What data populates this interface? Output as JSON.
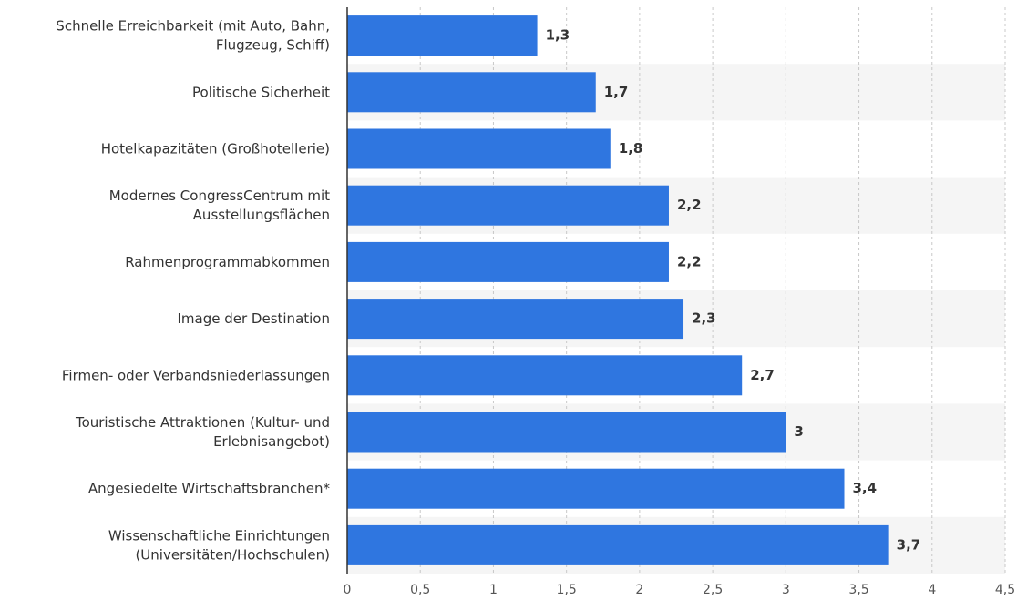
{
  "chart_data": {
    "type": "bar",
    "orientation": "horizontal",
    "categories": [
      [
        "Schnelle Erreichbarkeit (mit Auto, Bahn,",
        "Flugzeug, Schiff)"
      ],
      [
        "Politische Sicherheit"
      ],
      [
        "Hotelkapazitäten (Großhotellerie)"
      ],
      [
        "Modernes CongressCentrum mit",
        "Ausstellungsflächen"
      ],
      [
        "Rahmenprogrammabkommen"
      ],
      [
        "Image der Destination"
      ],
      [
        "Firmen- oder Verbandsniederlassungen"
      ],
      [
        "Touristische Attraktionen (Kultur- und",
        "Erlebnisangebot)"
      ],
      [
        "Angesiedelte Wirtschaftsbranchen*"
      ],
      [
        "Wissenschaftliche Einrichtungen",
        "(Universitäten/Hochschulen)"
      ]
    ],
    "values": [
      1.3,
      1.7,
      1.8,
      2.2,
      2.2,
      2.3,
      2.7,
      3,
      3.4,
      3.7
    ],
    "value_labels": [
      "1,3",
      "1,7",
      "1,8",
      "2,2",
      "2,2",
      "2,3",
      "2,7",
      "3",
      "3,4",
      "3,7"
    ],
    "x_ticks": [
      0,
      0.5,
      1,
      1.5,
      2,
      2.5,
      3,
      3.5,
      4,
      4.5
    ],
    "x_tick_labels": [
      "0",
      "0,5",
      "1",
      "1,5",
      "2",
      "2,5",
      "3",
      "3,5",
      "4",
      "4,5"
    ],
    "xlim": [
      0,
      4.5
    ],
    "grid": true,
    "colors": {
      "bar": "#2f76e0",
      "band": "#f5f5f5",
      "grid": "#c8c8c8",
      "axis": "#333333"
    }
  }
}
